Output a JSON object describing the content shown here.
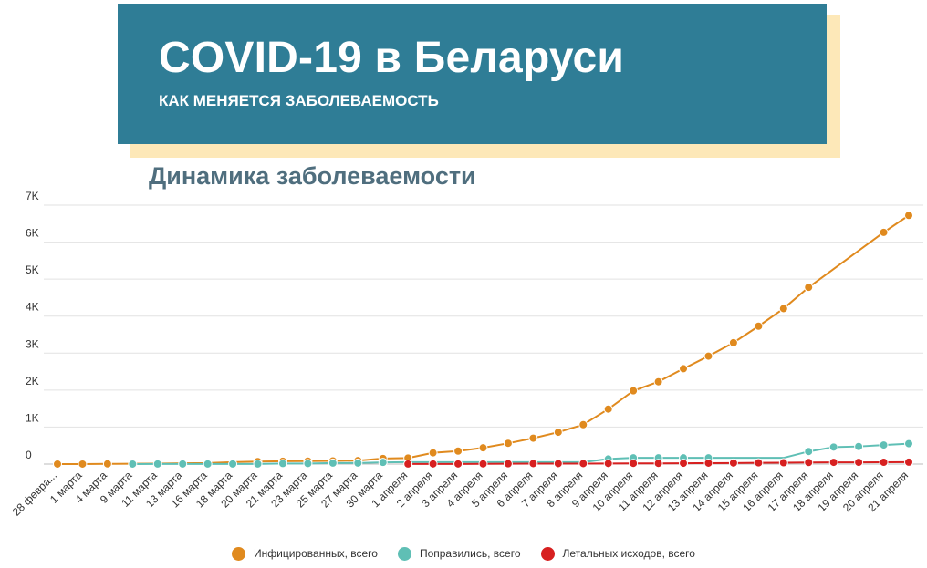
{
  "banner": {
    "title": "COVID-19 в Беларуси",
    "subtitle": "КАК МЕНЯЕТСЯ ЗАБОЛЕВАЕМОСТЬ"
  },
  "colors": {
    "banner_bg": "#2f7d96",
    "banner_shadow": "#fde8b8",
    "chart_title": "#4f6e7e",
    "gridline": "#e2e2e2"
  },
  "chart_data": {
    "type": "line",
    "title": "Динамика заболеваемости",
    "xlabel": "",
    "ylabel": "",
    "ylim": [
      0,
      7000
    ],
    "y_ticks": [
      "0",
      "1K",
      "2K",
      "3K",
      "4K",
      "5K",
      "6K",
      "7K"
    ],
    "y_tick_values": [
      0,
      1000,
      2000,
      3000,
      4000,
      5000,
      6000,
      7000
    ],
    "grid": true,
    "legend_position": "bottom",
    "x": [
      "28 февра...",
      "1 марта",
      "4 марта",
      "9 марта",
      "11 марта",
      "13 марта",
      "16 марта",
      "18 марта",
      "20 марта",
      "21 марта",
      "23 марта",
      "25 марта",
      "27 марта",
      "30 марта",
      "1 апреля",
      "2 апреля",
      "3 апреля",
      "4 апреля",
      "5 апреля",
      "6 апреля",
      "7 апреля",
      "8 апреля",
      "9 апреля",
      "10 апреля",
      "11 апреля",
      "12 апреля",
      "13 апреля",
      "14 апреля",
      "15 апреля",
      "16 апреля",
      "17 апреля",
      "18 апреля",
      "19 апреля",
      "20 апреля",
      "21 апреля"
    ],
    "series": [
      {
        "name": "Инфицированных, всего",
        "color": "#e08a1e",
        "values": [
          1,
          1,
          6,
          9,
          12,
          21,
          27,
          51,
          69,
          76,
          81,
          86,
          94,
          152,
          163,
          304,
          351,
          440,
          562,
          700,
          861,
          1066,
          1486,
          1981,
          2226,
          2578,
          2919,
          3281,
          3728,
          4204,
          4779,
          null,
          null,
          6264,
          6723
        ],
        "markers": [
          true,
          true,
          true,
          false,
          false,
          false,
          false,
          false,
          true,
          true,
          true,
          true,
          true,
          true,
          true,
          true,
          true,
          true,
          true,
          true,
          true,
          true,
          true,
          true,
          true,
          true,
          true,
          true,
          true,
          true,
          true,
          false,
          false,
          true,
          true
        ]
      },
      {
        "name": "Поправились, всего",
        "color": "#5fbfb5",
        "values": [
          null,
          null,
          null,
          1,
          3,
          3,
          3,
          3,
          3,
          15,
          15,
          27,
          27,
          45,
          53,
          53,
          53,
          53,
          53,
          53,
          53,
          53,
          138,
          168,
          168,
          168,
          168,
          168,
          168,
          168,
          340,
          460,
          476,
          516,
          552
        ],
        "markers": [
          false,
          false,
          false,
          true,
          true,
          true,
          true,
          true,
          true,
          true,
          true,
          true,
          true,
          true,
          false,
          false,
          false,
          false,
          false,
          false,
          false,
          false,
          true,
          true,
          true,
          true,
          true,
          false,
          false,
          false,
          true,
          true,
          true,
          true,
          true
        ]
      },
      {
        "name": "Летальных исходов, всего",
        "color": "#d72020",
        "values": [
          null,
          null,
          null,
          null,
          null,
          null,
          null,
          null,
          null,
          null,
          null,
          null,
          null,
          null,
          2,
          4,
          4,
          5,
          8,
          13,
          13,
          13,
          16,
          19,
          19,
          23,
          26,
          29,
          33,
          36,
          42,
          47,
          47,
          49,
          51
        ],
        "markers": [
          false,
          false,
          false,
          false,
          false,
          false,
          false,
          false,
          false,
          false,
          false,
          false,
          false,
          false,
          true,
          true,
          true,
          true,
          true,
          true,
          true,
          true,
          true,
          true,
          true,
          true,
          true,
          true,
          true,
          true,
          true,
          true,
          true,
          true,
          true
        ]
      }
    ]
  }
}
